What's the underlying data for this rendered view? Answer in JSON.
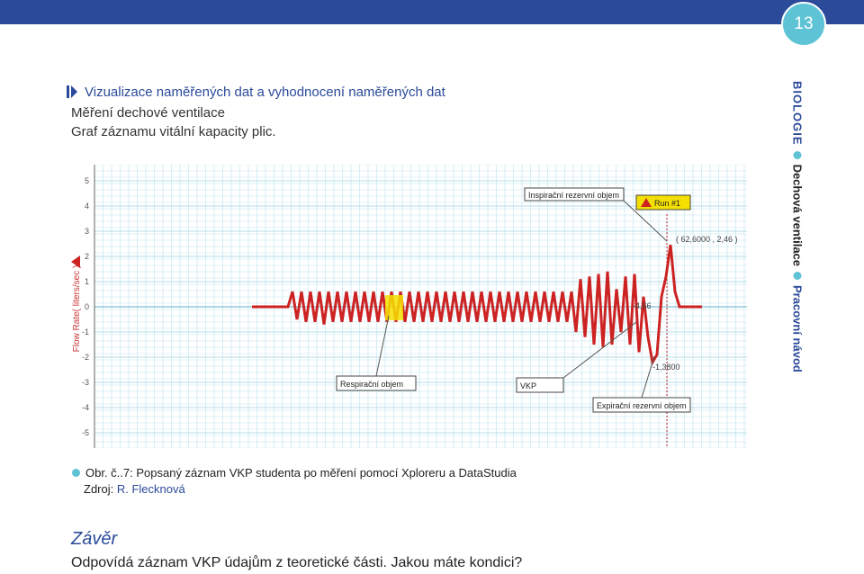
{
  "header": {
    "page_number": "13"
  },
  "heading": "Vizualizace naměřených dat a vyhodnocení naměřených dat",
  "lines": [
    "Měření dechové ventilace",
    "Graf záznamu vitální kapacity plic."
  ],
  "side_label": {
    "subject": "BIOLOGIE",
    "topic": "Dechová ventilace",
    "type": "Pracovní návod"
  },
  "figure": {
    "caption": "Obr. č..7: Popsaný záznam VKP studenta po měření pomocí Xploreru a DataStudia",
    "source_prefix": "Zdroj: ",
    "source_author": "R. Flecknová"
  },
  "conclusion": {
    "title": "Závěr",
    "text": "Odpovídá záznam VKP údajům z teoretické části. Jakou máte kondici?"
  },
  "chart_data": {
    "type": "line",
    "ylabel": "Flow Rate( liters/sec )",
    "ylim": [
      -5,
      5
    ],
    "y_ticks": [
      "5",
      "4",
      "3",
      "2",
      "1",
      "0",
      "-1",
      "-2",
      "-3",
      "-4",
      "-5"
    ],
    "grid": true,
    "series": [
      {
        "color": "#cc2222",
        "x": [
          0,
          1,
          2,
          3,
          4,
          5,
          6,
          7,
          8,
          9,
          10,
          11,
          12,
          13,
          14,
          15,
          16,
          17,
          18,
          19,
          20,
          21,
          22,
          23,
          24,
          25,
          26,
          27,
          28,
          29,
          30,
          31,
          32,
          33,
          34,
          35,
          36,
          37,
          38,
          39,
          40,
          41,
          42,
          43,
          44,
          45,
          46,
          47,
          48,
          49,
          50,
          51,
          52,
          53,
          54,
          55,
          56,
          57,
          58,
          59,
          60,
          61,
          62,
          63,
          64,
          65,
          66,
          67,
          68,
          69,
          70,
          71,
          72,
          73,
          74,
          75,
          76,
          77,
          78,
          79,
          80,
          81,
          82,
          83,
          84,
          85,
          86,
          87,
          88,
          89,
          90,
          91,
          92,
          93,
          94,
          95,
          96,
          97,
          98,
          99,
          100
        ],
        "values": [
          0,
          0,
          0,
          0,
          0,
          0,
          0,
          0,
          0,
          0.6,
          -0.5,
          0.6,
          -0.6,
          0.6,
          -0.6,
          0.6,
          -0.7,
          0.6,
          -0.6,
          0.6,
          -0.6,
          0.6,
          -0.6,
          0.6,
          -0.6,
          0.6,
          -0.6,
          0.6,
          -0.6,
          0.6,
          -0.6,
          0.6,
          -0.6,
          0.6,
          -0.6,
          0.6,
          -0.6,
          0.6,
          -0.6,
          0.6,
          -0.6,
          0.6,
          -0.6,
          0.6,
          -0.6,
          0.6,
          -0.6,
          0.6,
          -0.6,
          0.6,
          -0.6,
          0.6,
          -0.6,
          0.6,
          -0.6,
          0.6,
          -0.6,
          0.6,
          -0.6,
          0.6,
          -0.6,
          0.6,
          -0.6,
          0.6,
          -0.6,
          0.6,
          -0.6,
          0.6,
          -0.6,
          0.6,
          -0.6,
          0.6,
          -1.0,
          1.1,
          -1.2,
          1.2,
          -1.5,
          1.3,
          -1.6,
          1.4,
          -1.5,
          0.7,
          -1.0,
          1.2,
          -1.5,
          1.3,
          -1.8,
          0.4,
          -1.2,
          -2.2,
          -1.9,
          0.4,
          1.2,
          2.46,
          0.6,
          0,
          0,
          0,
          0,
          0,
          0
        ]
      }
    ],
    "annotations": {
      "inspiratory": "Inspirační rezervní objem",
      "run": "Run #1",
      "point": "( 62,6000 , 2,46 )",
      "value_466": "-4,66",
      "value_13800": "-1,3800",
      "respiratory": "Respirační objem",
      "vkp": "VKP",
      "expiratory": "Expirační rezervní objem"
    }
  }
}
